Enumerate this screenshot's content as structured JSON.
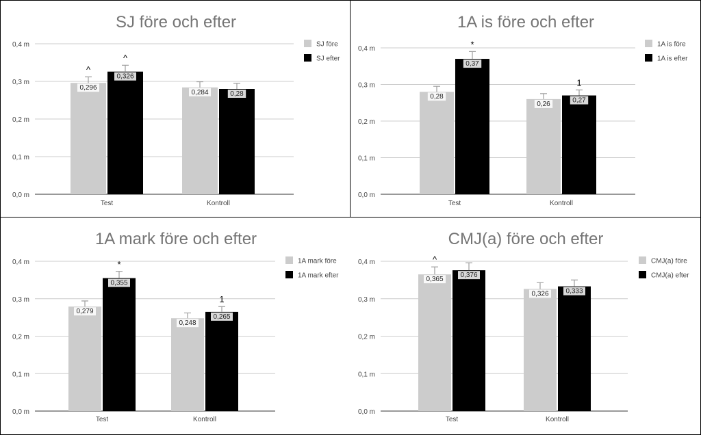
{
  "chart_data": [
    {
      "type": "bar",
      "title": "SJ före och efter",
      "categories": [
        "Test",
        "Kontroll"
      ],
      "y_ticks": [
        "0,0 m",
        "0,1 m",
        "0,2 m",
        "0,3 m",
        "0,4 m"
      ],
      "ylim": [
        0,
        0.4
      ],
      "grid": true,
      "legend_position": "right",
      "series": [
        {
          "name": "SJ före",
          "color": "#cccccc",
          "values": [
            0.296,
            0.284
          ],
          "labels": [
            "0,296",
            "0,284"
          ],
          "errors": [
            0.016,
            0.015
          ],
          "annotations": [
            "^",
            ""
          ]
        },
        {
          "name": "SJ efter",
          "color": "#000000",
          "values": [
            0.326,
            0.28
          ],
          "labels": [
            "0,326",
            "0,28"
          ],
          "errors": [
            0.017,
            0.015
          ],
          "annotations": [
            "^",
            ""
          ]
        }
      ]
    },
    {
      "type": "bar",
      "title": "1A is före och efter",
      "categories": [
        "Test",
        "Kontroll"
      ],
      "y_ticks": [
        "0,0 m",
        "0,1 m",
        "0,2 m",
        "0,3 m",
        "0,4 m"
      ],
      "ylim": [
        0,
        0.4
      ],
      "grid": true,
      "legend_position": "right",
      "series": [
        {
          "name": "1A is före",
          "color": "#cccccc",
          "values": [
            0.28,
            0.26
          ],
          "labels": [
            "0,28",
            "0,26"
          ],
          "errors": [
            0.015,
            0.015
          ],
          "annotations": [
            "",
            ""
          ]
        },
        {
          "name": "1A is efter",
          "color": "#000000",
          "values": [
            0.37,
            0.27
          ],
          "labels": [
            "0,37",
            "0,27"
          ],
          "errors": [
            0.02,
            0.015
          ],
          "annotations": [
            "*",
            "1"
          ]
        }
      ]
    },
    {
      "type": "bar",
      "title": "1A mark före och efter",
      "categories": [
        "Test",
        "Kontroll"
      ],
      "y_ticks": [
        "0,0 m",
        "0,1 m",
        "0,2 m",
        "0,3 m",
        "0,4 m"
      ],
      "ylim": [
        0,
        0.4
      ],
      "grid": true,
      "legend_position": "right",
      "series": [
        {
          "name": "1A mark före",
          "color": "#cccccc",
          "values": [
            0.279,
            0.248
          ],
          "labels": [
            "0,279",
            "0,248"
          ],
          "errors": [
            0.015,
            0.014
          ],
          "annotations": [
            "",
            ""
          ]
        },
        {
          "name": "1A mark efter",
          "color": "#000000",
          "values": [
            0.355,
            0.265
          ],
          "labels": [
            "0,355",
            "0,265"
          ],
          "errors": [
            0.018,
            0.014
          ],
          "annotations": [
            "*",
            "1"
          ]
        }
      ]
    },
    {
      "type": "bar",
      "title": "CMJ(a) före och efter",
      "categories": [
        "Test",
        "Kontroll"
      ],
      "y_ticks": [
        "0,0 m",
        "0,1 m",
        "0,2 m",
        "0,3 m",
        "0,4 m"
      ],
      "ylim": [
        0,
        0.4
      ],
      "grid": true,
      "legend_position": "right",
      "series": [
        {
          "name": "CMJ(a) före",
          "color": "#cccccc",
          "values": [
            0.365,
            0.326
          ],
          "labels": [
            "0,365",
            "0,326"
          ],
          "errors": [
            0.02,
            0.017
          ],
          "annotations": [
            "^",
            ""
          ]
        },
        {
          "name": "CMJ(a) efter",
          "color": "#000000",
          "values": [
            0.376,
            0.333
          ],
          "labels": [
            "0,376",
            "0,333"
          ],
          "errors": [
            0.02,
            0.017
          ],
          "annotations": [
            "",
            ""
          ]
        }
      ]
    }
  ]
}
